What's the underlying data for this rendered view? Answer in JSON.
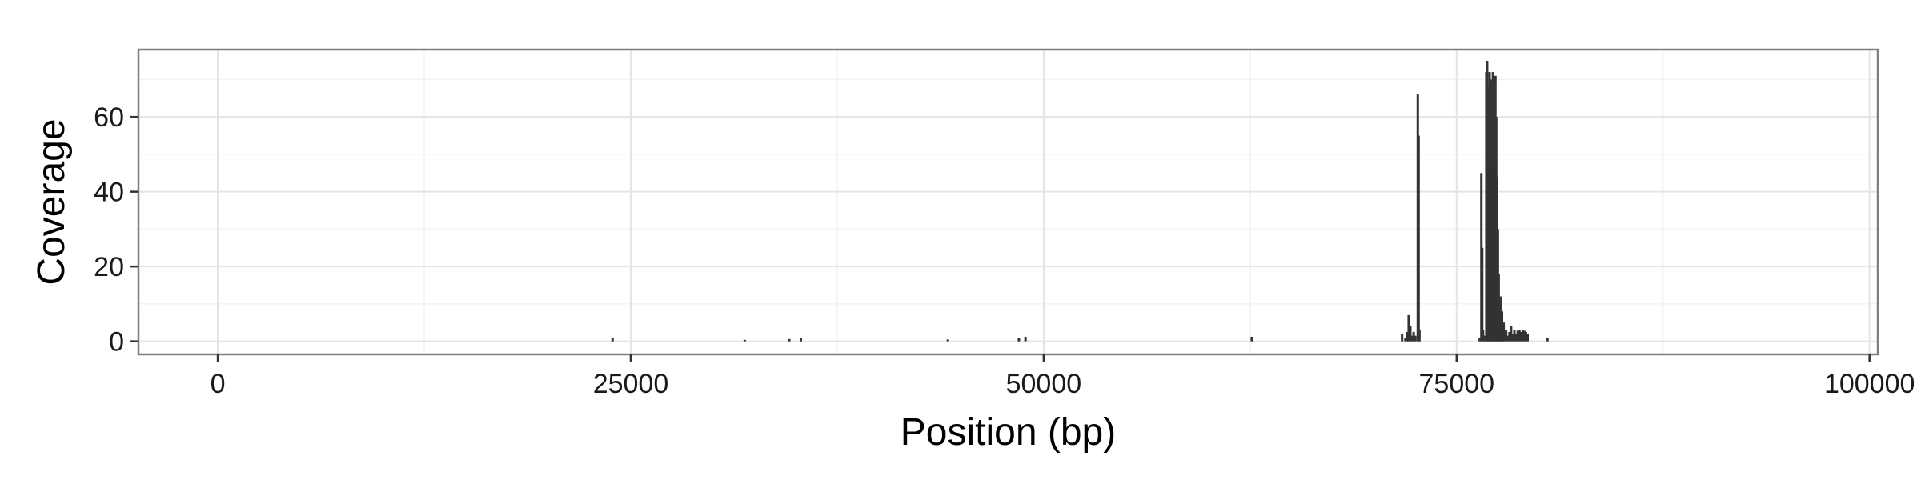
{
  "chart_data": {
    "type": "bar",
    "title": "",
    "xlabel": "Position (bp)",
    "ylabel": "Coverage",
    "xlim": [
      -4800,
      100500
    ],
    "ylim": [
      -3.5,
      78
    ],
    "xticks": [
      0,
      25000,
      50000,
      75000,
      100000
    ],
    "xtick_labels": [
      "0",
      "25000",
      "50000",
      "75000",
      "100000"
    ],
    "yticks": [
      0,
      20,
      40,
      60
    ],
    "ytick_labels": [
      "0",
      "20",
      "40",
      "60"
    ],
    "grid": true,
    "legend": "none",
    "colors": {
      "bar": "#333333",
      "panel_border": "#7f7f7f",
      "grid_major": "#e4e4e4",
      "grid_minor": "#f3f3f3"
    },
    "series": [
      {
        "values": [
          [
            23900,
            1
          ],
          [
            31900,
            0.4
          ],
          [
            34600,
            0.6
          ],
          [
            35300,
            0.8
          ],
          [
            44200,
            0.5
          ],
          [
            48500,
            0.8
          ],
          [
            48900,
            1.2
          ],
          [
            62600,
            1.2
          ],
          [
            71700,
            2
          ],
          [
            71900,
            1
          ],
          [
            72000,
            2.5
          ],
          [
            72100,
            7
          ],
          [
            72200,
            4
          ],
          [
            72300,
            1.5
          ],
          [
            72400,
            2.5
          ],
          [
            72500,
            1.5
          ],
          [
            72650,
            66
          ],
          [
            72700,
            55
          ],
          [
            72750,
            3
          ],
          [
            76400,
            1
          ],
          [
            76500,
            45
          ],
          [
            76550,
            25
          ],
          [
            76600,
            3
          ],
          [
            76700,
            1.5
          ],
          [
            76800,
            72
          ],
          [
            76850,
            75
          ],
          [
            76900,
            68
          ],
          [
            76950,
            55
          ],
          [
            77000,
            72
          ],
          [
            77050,
            62
          ],
          [
            77100,
            70
          ],
          [
            77150,
            45
          ],
          [
            77200,
            72
          ],
          [
            77250,
            50
          ],
          [
            77300,
            70
          ],
          [
            77350,
            71
          ],
          [
            77400,
            60
          ],
          [
            77450,
            44
          ],
          [
            77500,
            30
          ],
          [
            77550,
            18
          ],
          [
            77600,
            10
          ],
          [
            77650,
            12
          ],
          [
            77700,
            6
          ],
          [
            77750,
            8
          ],
          [
            77800,
            4
          ],
          [
            77850,
            5
          ],
          [
            77900,
            2.5
          ],
          [
            78000,
            3
          ],
          [
            78100,
            1.5
          ],
          [
            78200,
            2.5
          ],
          [
            78300,
            4
          ],
          [
            78400,
            2
          ],
          [
            78500,
            3
          ],
          [
            78600,
            2
          ],
          [
            78700,
            2.8
          ],
          [
            78800,
            3
          ],
          [
            78900,
            2.5
          ],
          [
            79000,
            3
          ],
          [
            79100,
            2.8
          ],
          [
            79200,
            2.5
          ],
          [
            79300,
            2
          ],
          [
            80500,
            1
          ]
        ]
      }
    ]
  }
}
